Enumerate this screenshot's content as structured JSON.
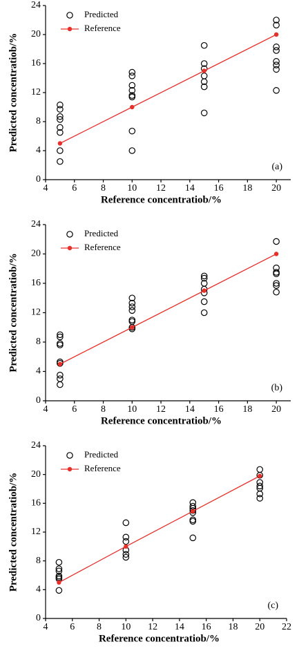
{
  "chart_data": [
    {
      "type": "scatter",
      "xlabel": "Reference concentratiob/%",
      "ylabel": "Predicted concentratiob/%",
      "annotation": "(a)",
      "xlim": [
        4,
        21
      ],
      "ylim": [
        0,
        24
      ],
      "xticks": [
        4,
        6,
        8,
        10,
        12,
        14,
        16,
        18,
        20
      ],
      "yticks": [
        0,
        4,
        8,
        12,
        16,
        20,
        24
      ],
      "legend": "upper left",
      "series": [
        {
          "name": "Predicted",
          "color": "#000000",
          "x": [
            5,
            5,
            5,
            5,
            5,
            5,
            5,
            5,
            10,
            10,
            10,
            10,
            10,
            10,
            10,
            10,
            15,
            15,
            15,
            15,
            15,
            15,
            15,
            20,
            20,
            20,
            20,
            20,
            20,
            20,
            20
          ],
          "values": [
            10.3,
            9.7,
            8.7,
            8.3,
            7.2,
            6.5,
            4.0,
            2.5,
            14.8,
            14.3,
            13.0,
            12.3,
            11.6,
            11.4,
            6.7,
            4.0,
            18.5,
            16.0,
            15.3,
            14.3,
            13.5,
            12.8,
            9.2,
            22.0,
            21.3,
            18.3,
            17.8,
            16.3,
            15.8,
            15.2,
            12.3
          ]
        },
        {
          "name": "Reference",
          "color": "#e8302a",
          "x": [
            5,
            10,
            15,
            20
          ],
          "values": [
            5,
            10,
            15,
            20
          ]
        }
      ]
    },
    {
      "type": "scatter",
      "xlabel": "Reference concentratiob/%",
      "ylabel": "Predicted concentratiob/%",
      "annotation": "(b)",
      "xlim": [
        4,
        21
      ],
      "ylim": [
        0,
        24
      ],
      "xticks": [
        4,
        6,
        8,
        10,
        12,
        14,
        16,
        18,
        20
      ],
      "yticks": [
        0,
        4,
        8,
        12,
        16,
        20,
        24
      ],
      "legend": "upper left",
      "series": [
        {
          "name": "Predicted",
          "color": "#000000",
          "x": [
            5,
            5,
            5,
            5,
            5,
            5,
            5,
            5,
            5,
            10,
            10,
            10,
            10,
            10,
            10,
            10,
            10,
            15,
            15,
            15,
            15,
            15,
            15,
            15,
            20,
            20,
            20,
            20,
            20,
            20,
            20
          ],
          "values": [
            9.0,
            8.7,
            7.8,
            7.6,
            5.3,
            5.1,
            3.5,
            3.0,
            2.2,
            14.0,
            13.3,
            12.8,
            12.3,
            11.0,
            10.8,
            10.0,
            9.8,
            17.0,
            16.7,
            16.0,
            15.2,
            14.7,
            13.5,
            12.0,
            21.7,
            18.1,
            17.5,
            17.3,
            16.0,
            15.7,
            14.8
          ]
        },
        {
          "name": "Reference",
          "color": "#e8302a",
          "x": [
            5,
            10,
            15,
            20
          ],
          "values": [
            5,
            10,
            15,
            20
          ]
        }
      ]
    },
    {
      "type": "scatter",
      "xlabel": "Reference concentratiob/%",
      "ylabel": "Predicted concentratiob/%",
      "annotation": "(c)",
      "xlim": [
        4,
        22
      ],
      "ylim": [
        0,
        24
      ],
      "xticks": [
        4,
        6,
        8,
        10,
        12,
        14,
        16,
        18,
        20,
        22
      ],
      "yticks": [
        0,
        4,
        8,
        12,
        16,
        20,
        24
      ],
      "legend": "upper left",
      "series": [
        {
          "name": "Predicted",
          "color": "#000000",
          "x": [
            5,
            5,
            5,
            5,
            5,
            5,
            5,
            10,
            10,
            10,
            10,
            10,
            10,
            15,
            15,
            15,
            15,
            15,
            15,
            15,
            15,
            20,
            20,
            20,
            20,
            20,
            20,
            20
          ],
          "values": [
            7.8,
            6.9,
            6.6,
            5.9,
            5.7,
            5.5,
            3.9,
            13.3,
            11.3,
            10.7,
            9.5,
            8.9,
            8.5,
            16.1,
            15.6,
            15.3,
            15.0,
            14.7,
            13.7,
            13.5,
            11.2,
            20.7,
            19.9,
            18.9,
            18.4,
            18.1,
            17.3,
            16.7
          ]
        },
        {
          "name": "Reference",
          "color": "#e8302a",
          "x": [
            5,
            10,
            15,
            20
          ],
          "values": [
            5,
            10,
            14.9,
            19.8
          ]
        }
      ]
    }
  ]
}
